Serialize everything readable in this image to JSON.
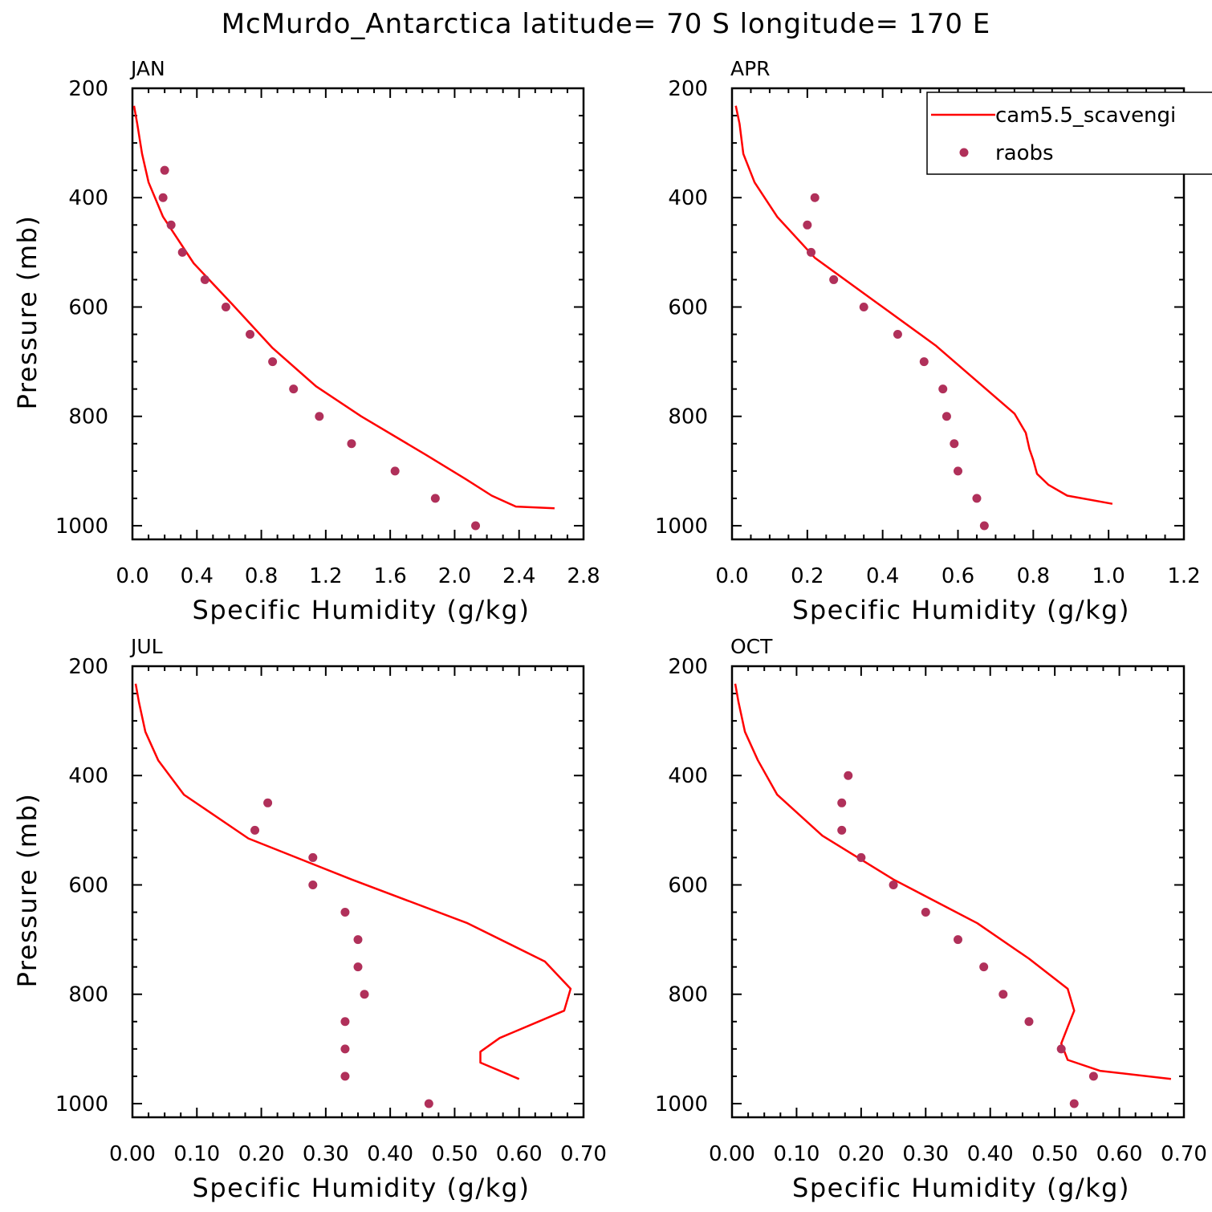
{
  "title": "McMurdo_Antarctica  latitude= 70 S longitude= 170 E",
  "legend": {
    "model_label": "cam5.5_scavengi",
    "obs_label": "raobs",
    "placement": "top-right of APR panel"
  },
  "colors": {
    "model": "#ff0000",
    "obs": "#b0305a",
    "axis": "#000000"
  },
  "chart_data": [
    {
      "type": "line",
      "panel_label": "JAN",
      "xlabel": "Specific Humidity (g/kg)",
      "ylabel": "Pressure (mb)",
      "xlim": [
        0,
        2.8
      ],
      "ylim": [
        1025,
        200
      ],
      "xticks": [
        0.0,
        0.4,
        0.8,
        1.2,
        1.6,
        2.0,
        2.4,
        2.8
      ],
      "xtick_labels": [
        "0.0",
        "0.4",
        "0.8",
        "1.2",
        "1.6",
        "2.0",
        "2.4",
        "2.8"
      ],
      "yticks": [
        200,
        400,
        600,
        800,
        1000
      ],
      "ytick_labels": [
        "200",
        "400",
        "600",
        "800",
        "1000"
      ],
      "series": [
        {
          "name": "cam5.5_scavengi",
          "kind": "line",
          "x": [
            0.01,
            0.03,
            0.06,
            0.1,
            0.19,
            0.38,
            0.62,
            0.87,
            1.14,
            1.42,
            1.82,
            2.07,
            2.23,
            2.38,
            2.62
          ],
          "y": [
            232,
            265,
            320,
            372,
            435,
            520,
            595,
            675,
            745,
            800,
            870,
            915,
            945,
            965,
            968
          ]
        },
        {
          "name": "raobs",
          "kind": "scatter",
          "x": [
            0.2,
            0.19,
            0.24,
            0.31,
            0.45,
            0.58,
            0.73,
            0.87,
            1.0,
            1.16,
            1.36,
            1.63,
            1.88,
            2.13
          ],
          "y": [
            350,
            400,
            450,
            500,
            550,
            600,
            650,
            700,
            750,
            800,
            850,
            900,
            950,
            1000
          ]
        }
      ]
    },
    {
      "type": "line",
      "panel_label": "APR",
      "xlabel": "Specific Humidity (g/kg)",
      "ylabel": "",
      "xlim": [
        0,
        1.2
      ],
      "ylim": [
        1025,
        200
      ],
      "xticks": [
        0.0,
        0.2,
        0.4,
        0.6,
        0.8,
        1.0,
        1.2
      ],
      "xtick_labels": [
        "0.0",
        "0.2",
        "0.4",
        "0.6",
        "0.8",
        "1.0",
        "1.2"
      ],
      "yticks": [
        200,
        400,
        600,
        800,
        1000
      ],
      "ytick_labels": [
        "200",
        "400",
        "600",
        "800",
        "1000"
      ],
      "series": [
        {
          "name": "cam5.5_scavengi",
          "kind": "line",
          "x": [
            0.01,
            0.02,
            0.03,
            0.06,
            0.12,
            0.22,
            0.38,
            0.54,
            0.75,
            0.78,
            0.79,
            0.8,
            0.81,
            0.84,
            0.89,
            1.01
          ],
          "y": [
            232,
            265,
            320,
            372,
            435,
            510,
            590,
            670,
            795,
            830,
            860,
            880,
            905,
            925,
            945,
            960
          ]
        },
        {
          "name": "raobs",
          "kind": "scatter",
          "x": [
            0.22,
            0.2,
            0.21,
            0.27,
            0.35,
            0.44,
            0.51,
            0.56,
            0.57,
            0.59,
            0.6,
            0.65,
            0.67
          ],
          "y": [
            400,
            450,
            500,
            550,
            600,
            650,
            700,
            750,
            800,
            850,
            900,
            950,
            1000
          ]
        }
      ]
    },
    {
      "type": "line",
      "panel_label": "JUL",
      "xlabel": "Specific Humidity (g/kg)",
      "ylabel": "Pressure (mb)",
      "xlim": [
        0,
        0.7
      ],
      "ylim": [
        1025,
        200
      ],
      "xticks": [
        0.0,
        0.1,
        0.2,
        0.3,
        0.4,
        0.5,
        0.6,
        0.7
      ],
      "xtick_labels": [
        "0.00",
        "0.10",
        "0.20",
        "0.30",
        "0.40",
        "0.50",
        "0.60",
        "0.70"
      ],
      "yticks": [
        200,
        400,
        600,
        800,
        1000
      ],
      "ytick_labels": [
        "200",
        "400",
        "600",
        "800",
        "1000"
      ],
      "series": [
        {
          "name": "cam5.5_scavengi",
          "kind": "line",
          "x": [
            0.005,
            0.01,
            0.02,
            0.04,
            0.08,
            0.18,
            0.34,
            0.52,
            0.64,
            0.68,
            0.67,
            0.63,
            0.57,
            0.54,
            0.54,
            0.6
          ],
          "y": [
            232,
            265,
            320,
            372,
            435,
            515,
            590,
            670,
            740,
            790,
            830,
            850,
            880,
            905,
            925,
            955
          ]
        },
        {
          "name": "raobs",
          "kind": "scatter",
          "x": [
            0.21,
            0.19,
            0.28,
            0.28,
            0.33,
            0.35,
            0.35,
            0.36,
            0.33,
            0.33,
            0.33,
            0.46
          ],
          "y": [
            450,
            500,
            550,
            600,
            650,
            700,
            750,
            800,
            850,
            900,
            950,
            1000
          ]
        }
      ]
    },
    {
      "type": "line",
      "panel_label": "OCT",
      "xlabel": "Specific Humidity (g/kg)",
      "ylabel": "",
      "xlim": [
        0,
        0.7
      ],
      "ylim": [
        1025,
        200
      ],
      "xticks": [
        0.0,
        0.1,
        0.2,
        0.3,
        0.4,
        0.5,
        0.6,
        0.7
      ],
      "xtick_labels": [
        "0.00",
        "0.10",
        "0.20",
        "0.30",
        "0.40",
        "0.50",
        "0.60",
        "0.70"
      ],
      "yticks": [
        200,
        400,
        600,
        800,
        1000
      ],
      "ytick_labels": [
        "200",
        "400",
        "600",
        "800",
        "1000"
      ],
      "series": [
        {
          "name": "cam5.5_scavengi",
          "kind": "line",
          "x": [
            0.005,
            0.01,
            0.02,
            0.04,
            0.07,
            0.14,
            0.25,
            0.38,
            0.46,
            0.52,
            0.53,
            0.52,
            0.51,
            0.52,
            0.57,
            0.68
          ],
          "y": [
            232,
            265,
            320,
            372,
            435,
            510,
            590,
            670,
            735,
            790,
            830,
            860,
            890,
            920,
            940,
            955
          ]
        },
        {
          "name": "raobs",
          "kind": "scatter",
          "x": [
            0.18,
            0.17,
            0.17,
            0.2,
            0.25,
            0.3,
            0.35,
            0.39,
            0.42,
            0.46,
            0.51,
            0.56,
            0.53
          ],
          "y": [
            400,
            450,
            500,
            550,
            600,
            650,
            700,
            750,
            800,
            850,
            900,
            950,
            1000
          ]
        }
      ]
    }
  ]
}
